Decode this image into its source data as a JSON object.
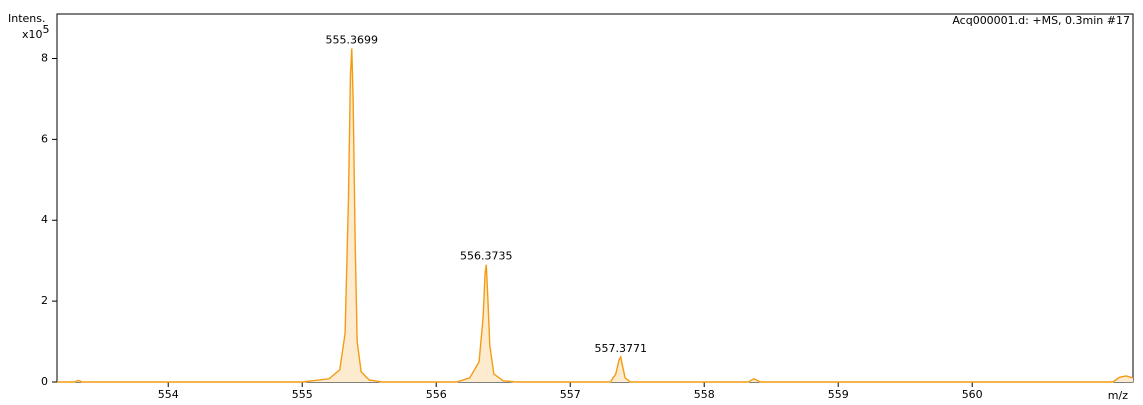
{
  "chart_data": {
    "type": "line",
    "title": "Acq000001.d: +MS, 0.3min #17",
    "y_label": "Intens.",
    "y_scale": {
      "base": "x10",
      "exponent": "5"
    },
    "x_label": "m/z",
    "xlim": [
      553.17,
      561.2
    ],
    "ylim": [
      0,
      9.1
    ],
    "xticks": [
      554,
      555,
      556,
      557,
      558,
      559,
      560
    ],
    "yticks": [
      0,
      2,
      4,
      6,
      8
    ],
    "series": [
      {
        "color": "#f39c12",
        "fill": "#fdebd0",
        "x": [
          553.17,
          553.3,
          553.33,
          553.36,
          555.0,
          555.2,
          555.28,
          555.32,
          555.345,
          555.36,
          555.3699,
          555.38,
          555.395,
          555.41,
          555.44,
          555.5,
          555.6,
          556.15,
          556.25,
          556.32,
          556.35,
          556.365,
          556.3735,
          556.385,
          556.4,
          556.43,
          556.5,
          556.6,
          557.3,
          557.34,
          557.365,
          557.3771,
          557.39,
          557.41,
          557.45,
          558.33,
          558.37,
          558.42,
          561.05,
          561.1,
          561.15,
          561.2
        ],
        "values": [
          0,
          0,
          0.04,
          0,
          0,
          0.08,
          0.3,
          1.2,
          4.5,
          7.6,
          8.25,
          7.0,
          3.5,
          1.0,
          0.25,
          0.05,
          0,
          0,
          0.1,
          0.5,
          1.6,
          2.7,
          2.9,
          2.1,
          0.9,
          0.2,
          0.03,
          0,
          0,
          0.2,
          0.55,
          0.62,
          0.4,
          0.1,
          0,
          0,
          0.08,
          0,
          0,
          0.12,
          0.15,
          0.1
        ]
      }
    ],
    "annotations": [
      {
        "x": 555.3699,
        "y": 8.25
      },
      {
        "x": 556.3735,
        "y": 2.9
      },
      {
        "x": 557.3771,
        "y": 0.62
      }
    ]
  }
}
